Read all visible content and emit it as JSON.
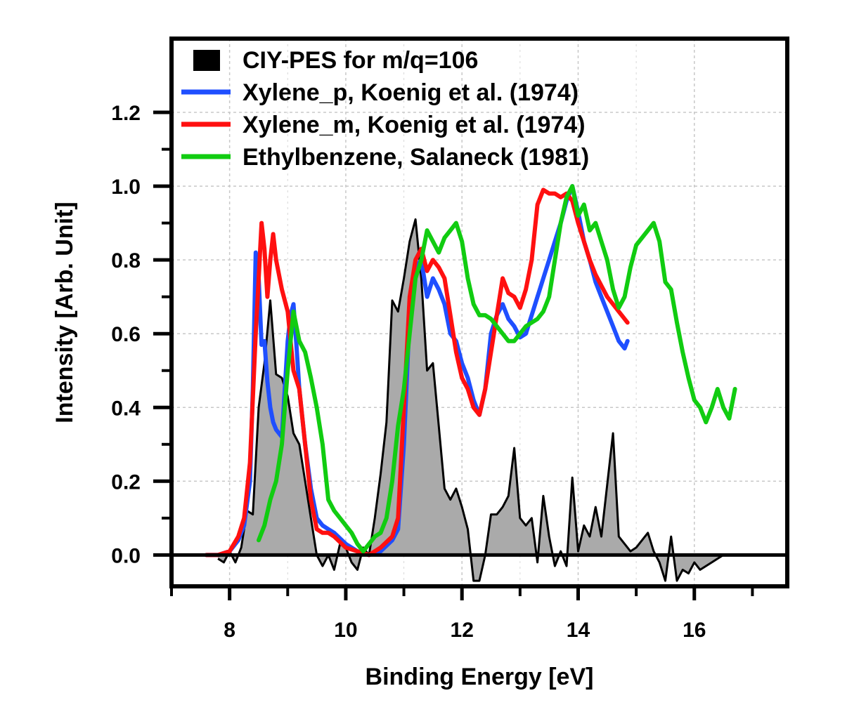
{
  "chart_data": {
    "type": "line",
    "title": "",
    "xlabel": "Binding Energy [eV]",
    "ylabel": "Intensity [Arb. Unit]",
    "xlim": [
      7.0,
      17.6
    ],
    "ylim": [
      -0.085,
      1.4
    ],
    "x_ticks": [
      8,
      10,
      12,
      14,
      16
    ],
    "x_tick_labels": [
      "8",
      "10",
      "12",
      "14",
      "16"
    ],
    "y_ticks": [
      0.0,
      0.2,
      0.4,
      0.6,
      0.8,
      1.0,
      1.2
    ],
    "y_tick_labels": [
      "0.0",
      "0.2",
      "0.4",
      "0.6",
      "0.8",
      "1.0",
      "1.2"
    ],
    "grid": true,
    "legend_position": "top-left",
    "colors": {
      "ciy": "#aaaaaa",
      "ciy_edge": "#000000",
      "p": "#1f4fff",
      "m": "#ff1010",
      "eb": "#11cc11"
    },
    "series": [
      {
        "name": "CIY-PES for m/q=106",
        "key": "ciy",
        "style": "area",
        "x": [
          7.8,
          7.9,
          8.0,
          8.1,
          8.2,
          8.3,
          8.4,
          8.5,
          8.6,
          8.7,
          8.8,
          8.9,
          9.0,
          9.1,
          9.2,
          9.3,
          9.4,
          9.5,
          9.6,
          9.7,
          9.8,
          9.9,
          10.0,
          10.1,
          10.2,
          10.3,
          10.4,
          10.5,
          10.6,
          10.7,
          10.8,
          10.9,
          11.0,
          11.1,
          11.2,
          11.3,
          11.4,
          11.5,
          11.6,
          11.7,
          11.8,
          11.9,
          12.0,
          12.1,
          12.2,
          12.3,
          12.4,
          12.5,
          12.6,
          12.7,
          12.8,
          12.9,
          13.0,
          13.1,
          13.2,
          13.3,
          13.4,
          13.5,
          13.6,
          13.7,
          13.8,
          13.9,
          14.0,
          14.1,
          14.2,
          14.3,
          14.4,
          14.5,
          14.6,
          14.7,
          14.8,
          14.9,
          15.0,
          15.1,
          15.2,
          15.3,
          15.4,
          15.5,
          15.6,
          15.7,
          15.8,
          15.9,
          16.0,
          16.1,
          16.2,
          16.3,
          16.4,
          16.5,
          16.6,
          16.7
        ],
        "values": [
          -0.01,
          -0.02,
          0.01,
          -0.02,
          0.02,
          0.12,
          0.11,
          0.4,
          0.52,
          0.69,
          0.49,
          0.48,
          0.43,
          0.33,
          0.3,
          0.2,
          0.1,
          0.0,
          -0.03,
          0.0,
          -0.04,
          0.03,
          0.02,
          -0.02,
          -0.04,
          0.02,
          0.0,
          0.1,
          0.22,
          0.36,
          0.69,
          0.66,
          0.75,
          0.85,
          0.91,
          0.75,
          0.5,
          0.52,
          0.35,
          0.18,
          0.15,
          0.18,
          0.13,
          0.07,
          -0.07,
          -0.07,
          0.0,
          0.11,
          0.11,
          0.13,
          0.16,
          0.29,
          0.1,
          0.08,
          0.1,
          -0.02,
          0.16,
          0.05,
          -0.03,
          0.01,
          -0.03,
          0.21,
          0.01,
          0.08,
          0.05,
          0.13,
          0.05,
          0.19,
          0.33,
          0.05,
          0.03,
          0.01,
          0.02,
          0.04,
          0.06,
          0.01,
          -0.02,
          -0.07,
          0.05,
          -0.07,
          -0.04,
          -0.05,
          -0.02,
          -0.04,
          -0.03,
          -0.02,
          -0.01,
          0.0,
          0.0,
          0.0
        ]
      },
      {
        "name": "Xylene_p, Koenig et al. (1974)",
        "key": "p",
        "style": "line",
        "x": [
          7.6,
          7.8,
          8.0,
          8.15,
          8.25,
          8.35,
          8.4,
          8.45,
          8.5,
          8.55,
          8.6,
          8.65,
          8.7,
          8.75,
          8.8,
          8.9,
          9.0,
          9.05,
          9.1,
          9.15,
          9.2,
          9.3,
          9.4,
          9.5,
          9.6,
          9.7,
          9.8,
          10.0,
          10.2,
          10.4,
          10.6,
          10.8,
          10.9,
          11.0,
          11.1,
          11.2,
          11.3,
          11.4,
          11.5,
          11.6,
          11.7,
          11.8,
          11.9,
          12.0,
          12.1,
          12.2,
          12.3,
          12.4,
          12.5,
          12.6,
          12.7,
          12.8,
          12.9,
          13.0,
          13.1,
          13.2,
          13.3,
          13.4,
          13.5,
          13.6,
          13.7,
          13.8,
          13.9,
          14.0,
          14.1,
          14.2,
          14.3,
          14.4,
          14.5,
          14.6,
          14.7,
          14.8,
          14.85
        ],
        "values": [
          0.0,
          0.0,
          0.01,
          0.04,
          0.08,
          0.2,
          0.45,
          0.82,
          0.75,
          0.57,
          0.58,
          0.47,
          0.4,
          0.36,
          0.34,
          0.32,
          0.58,
          0.65,
          0.68,
          0.57,
          0.45,
          0.3,
          0.18,
          0.1,
          0.08,
          0.07,
          0.06,
          0.03,
          0.01,
          0.0,
          0.01,
          0.04,
          0.07,
          0.3,
          0.65,
          0.78,
          0.8,
          0.7,
          0.75,
          0.72,
          0.68,
          0.6,
          0.58,
          0.52,
          0.48,
          0.42,
          0.38,
          0.45,
          0.6,
          0.65,
          0.68,
          0.64,
          0.62,
          0.59,
          0.6,
          0.65,
          0.7,
          0.75,
          0.8,
          0.85,
          0.9,
          0.96,
          1.0,
          0.93,
          0.85,
          0.8,
          0.74,
          0.7,
          0.66,
          0.62,
          0.58,
          0.56,
          0.58
        ]
      },
      {
        "name": "Xylene_m, Koenig et al. (1974)",
        "key": "m",
        "style": "line",
        "x": [
          7.6,
          7.8,
          8.0,
          8.15,
          8.25,
          8.35,
          8.45,
          8.5,
          8.55,
          8.6,
          8.65,
          8.7,
          8.75,
          8.8,
          8.9,
          9.0,
          9.1,
          9.2,
          9.3,
          9.4,
          9.5,
          9.6,
          9.7,
          9.8,
          10.0,
          10.2,
          10.4,
          10.6,
          10.8,
          10.9,
          11.0,
          11.1,
          11.2,
          11.3,
          11.4,
          11.5,
          11.6,
          11.7,
          11.8,
          11.9,
          12.0,
          12.1,
          12.2,
          12.3,
          12.4,
          12.5,
          12.6,
          12.7,
          12.8,
          12.9,
          13.0,
          13.1,
          13.2,
          13.3,
          13.4,
          13.5,
          13.6,
          13.7,
          13.8,
          13.9,
          14.0,
          14.1,
          14.2,
          14.3,
          14.4,
          14.5,
          14.6,
          14.7,
          14.8,
          14.85
        ],
        "values": [
          0.0,
          0.0,
          0.01,
          0.05,
          0.1,
          0.25,
          0.6,
          0.75,
          0.9,
          0.83,
          0.7,
          0.8,
          0.87,
          0.8,
          0.72,
          0.66,
          0.5,
          0.45,
          0.3,
          0.15,
          0.07,
          0.06,
          0.06,
          0.05,
          0.02,
          0.01,
          0.0,
          0.02,
          0.05,
          0.1,
          0.4,
          0.7,
          0.8,
          0.83,
          0.77,
          0.8,
          0.78,
          0.75,
          0.65,
          0.55,
          0.48,
          0.45,
          0.4,
          0.38,
          0.45,
          0.55,
          0.65,
          0.75,
          0.71,
          0.7,
          0.67,
          0.72,
          0.8,
          0.95,
          0.99,
          0.98,
          0.98,
          0.97,
          0.98,
          0.96,
          0.9,
          0.85,
          0.8,
          0.76,
          0.73,
          0.7,
          0.68,
          0.66,
          0.64,
          0.63
        ]
      },
      {
        "name": "Ethylbenzene, Salaneck (1981)",
        "key": "eb",
        "style": "line",
        "x": [
          8.5,
          8.6,
          8.7,
          8.8,
          8.9,
          9.0,
          9.1,
          9.2,
          9.3,
          9.4,
          9.5,
          9.6,
          9.7,
          9.8,
          9.9,
          10.0,
          10.1,
          10.2,
          10.3,
          10.4,
          10.5,
          10.6,
          10.7,
          10.8,
          10.9,
          11.0,
          11.1,
          11.2,
          11.3,
          11.4,
          11.5,
          11.6,
          11.7,
          11.8,
          11.9,
          12.0,
          12.1,
          12.2,
          12.3,
          12.4,
          12.5,
          12.6,
          12.7,
          12.8,
          12.9,
          13.0,
          13.1,
          13.2,
          13.3,
          13.4,
          13.5,
          13.6,
          13.7,
          13.8,
          13.9,
          14.0,
          14.1,
          14.2,
          14.3,
          14.4,
          14.5,
          14.6,
          14.7,
          14.8,
          14.9,
          15.0,
          15.1,
          15.2,
          15.3,
          15.4,
          15.5,
          15.6,
          15.7,
          15.8,
          15.9,
          16.0,
          16.1,
          16.2,
          16.3,
          16.4,
          16.5,
          16.6,
          16.7
        ],
        "values": [
          0.04,
          0.08,
          0.15,
          0.2,
          0.3,
          0.5,
          0.66,
          0.58,
          0.55,
          0.48,
          0.4,
          0.3,
          0.15,
          0.12,
          0.1,
          0.08,
          0.06,
          0.03,
          0.01,
          0.03,
          0.05,
          0.06,
          0.1,
          0.2,
          0.35,
          0.45,
          0.6,
          0.75,
          0.8,
          0.88,
          0.85,
          0.82,
          0.86,
          0.88,
          0.9,
          0.85,
          0.75,
          0.68,
          0.65,
          0.65,
          0.64,
          0.62,
          0.6,
          0.58,
          0.58,
          0.6,
          0.62,
          0.63,
          0.64,
          0.66,
          0.7,
          0.8,
          0.9,
          0.97,
          1.0,
          0.92,
          0.95,
          0.88,
          0.9,
          0.85,
          0.8,
          0.72,
          0.67,
          0.7,
          0.78,
          0.84,
          0.86,
          0.88,
          0.9,
          0.85,
          0.74,
          0.72,
          0.63,
          0.55,
          0.48,
          0.42,
          0.4,
          0.36,
          0.4,
          0.45,
          0.4,
          0.37,
          0.45
        ]
      }
    ]
  }
}
